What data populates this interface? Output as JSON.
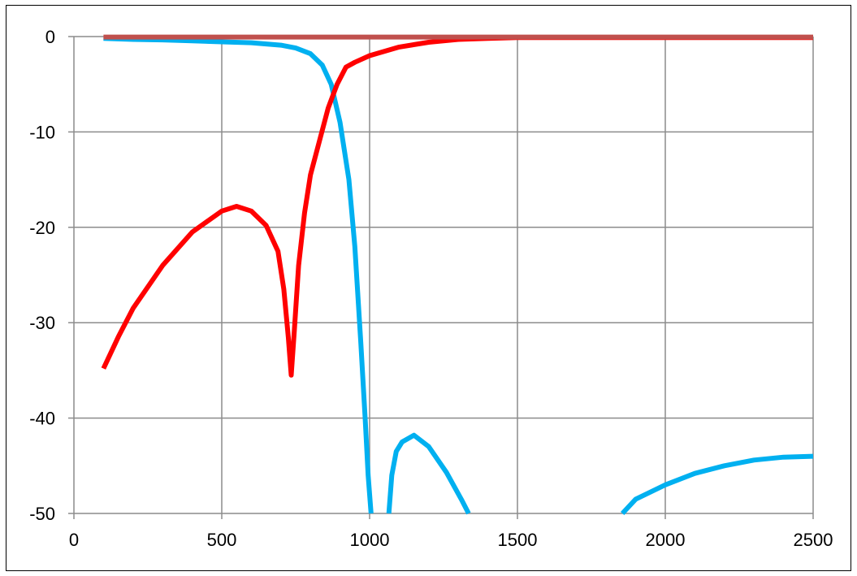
{
  "chart_data": {
    "type": "line",
    "title": "",
    "xlabel": "",
    "ylabel": "",
    "xlim": [
      0,
      2500
    ],
    "ylim": [
      -50,
      0
    ],
    "x_ticks": [
      0,
      500,
      1000,
      1500,
      2000,
      2500
    ],
    "y_ticks": [
      0,
      -10,
      -20,
      -30,
      -40,
      -50
    ],
    "x_tick_labels": [
      "0",
      "500",
      "1000",
      "1500",
      "2000",
      "2500"
    ],
    "y_tick_labels": [
      "0",
      "-10",
      "-20",
      "-30",
      "-40",
      "-50"
    ],
    "grid": true,
    "legend": "none",
    "colors": {
      "grid": "#8c8c8c",
      "axis": "#8c8c8c",
      "frame": "#000000"
    },
    "series": [
      {
        "color": "#00b0f0",
        "segments": [
          [
            [
              100,
              -0.2
            ],
            [
              200,
              -0.3
            ],
            [
              300,
              -0.35
            ],
            [
              400,
              -0.45
            ],
            [
              500,
              -0.55
            ],
            [
              600,
              -0.65
            ],
            [
              700,
              -0.9
            ],
            [
              750,
              -1.2
            ],
            [
              800,
              -1.8
            ],
            [
              840,
              -3
            ],
            [
              870,
              -5
            ],
            [
              900,
              -9
            ],
            [
              930,
              -15
            ],
            [
              950,
              -22
            ],
            [
              970,
              -32
            ],
            [
              985,
              -40
            ],
            [
              995,
              -46
            ],
            [
              1005,
              -50
            ]
          ],
          [
            [
              1065,
              -50
            ],
            [
              1075,
              -46
            ],
            [
              1090,
              -43.5
            ],
            [
              1110,
              -42.5
            ],
            [
              1150,
              -41.8
            ],
            [
              1200,
              -43
            ],
            [
              1260,
              -45.7
            ],
            [
              1310,
              -48.5
            ],
            [
              1335,
              -50
            ]
          ],
          [
            [
              1855,
              -50
            ],
            [
              1900,
              -48.5
            ],
            [
              2000,
              -47
            ],
            [
              2100,
              -45.8
            ],
            [
              2200,
              -45
            ],
            [
              2300,
              -44.4
            ],
            [
              2400,
              -44.1
            ],
            [
              2500,
              -44
            ]
          ]
        ]
      },
      {
        "color": "#ff0000",
        "segments": [
          [
            [
              100,
              -34.8
            ],
            [
              150,
              -31.5
            ],
            [
              200,
              -28.5
            ],
            [
              300,
              -24
            ],
            [
              400,
              -20.5
            ],
            [
              500,
              -18.3
            ],
            [
              550,
              -17.8
            ],
            [
              600,
              -18.3
            ],
            [
              650,
              -19.8
            ],
            [
              690,
              -22.5
            ],
            [
              710,
              -26.5
            ],
            [
              725,
              -31.5
            ],
            [
              735,
              -35.5
            ],
            [
              745,
              -31
            ],
            [
              760,
              -24
            ],
            [
              780,
              -18.5
            ],
            [
              800,
              -14.5
            ],
            [
              830,
              -11
            ],
            [
              860,
              -7.5
            ],
            [
              890,
              -5
            ],
            [
              920,
              -3.2
            ],
            [
              950,
              -2.7
            ],
            [
              1000,
              -2
            ],
            [
              1100,
              -1.1
            ],
            [
              1200,
              -0.6
            ],
            [
              1300,
              -0.3
            ],
            [
              1400,
              -0.2
            ],
            [
              1500,
              -0.1
            ],
            [
              2000,
              -0.1
            ],
            [
              2500,
              -0.1
            ]
          ]
        ]
      },
      {
        "color": "#c0504d",
        "segments": [
          [
            [
              100,
              -0.05
            ],
            [
              2500,
              -0.05
            ]
          ]
        ]
      }
    ]
  }
}
